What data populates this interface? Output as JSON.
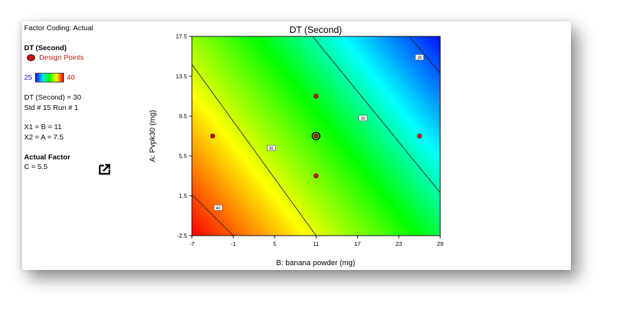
{
  "sidebar": {
    "factor_coding": "Factor Coding: Actual",
    "response_title": "DT (Second)",
    "design_points_label": "Design Points",
    "scale_min": "25",
    "scale_max": "40",
    "response_value": "DT (Second) = 30",
    "std_run": "Std # 15 Run # 1",
    "x1": "X1 = B = 11",
    "x2": "X2 = A = 7.5",
    "actual_factor_title": "Actual Factor",
    "actual_factor_value": "C = 5.5"
  },
  "colors": {
    "design_point": "#c0140c",
    "low": "#1010ff",
    "high": "#ff0000"
  },
  "chart_data": {
    "type": "heatmap",
    "title": "DT (Second)",
    "xlabel": "B: banana powder (mg)",
    "ylabel": "A: Pvpk30 (mg)",
    "xlim": [
      -7,
      29
    ],
    "ylim": [
      -2.5,
      17.5
    ],
    "x_ticks": [
      "-7",
      "-1",
      "5",
      "11",
      "17",
      "23",
      "29"
    ],
    "y_ticks": [
      "-2.5",
      "1.5",
      "5.5",
      "9.5",
      "13.5",
      "17.5"
    ],
    "contours": [
      {
        "label": "40",
        "value": 40
      },
      {
        "label": "35",
        "value": 35
      },
      {
        "label": "30",
        "value": 30
      },
      {
        "label": "25",
        "value": 25
      }
    ],
    "design_points": [
      {
        "x": 11,
        "y": 11.5
      },
      {
        "x": -4,
        "y": 7.5
      },
      {
        "x": 11,
        "y": 7.5,
        "selected": true
      },
      {
        "x": 26,
        "y": 7.5
      },
      {
        "x": 11,
        "y": 3.5
      }
    ],
    "selected_point": {
      "x": 11,
      "y": 7.5,
      "value": 30
    }
  }
}
